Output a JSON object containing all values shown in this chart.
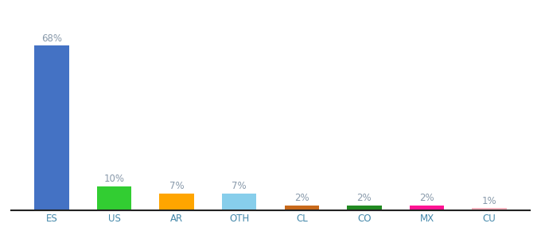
{
  "categories": [
    "ES",
    "US",
    "AR",
    "OTH",
    "CL",
    "CO",
    "MX",
    "CU"
  ],
  "values": [
    68,
    10,
    7,
    7,
    2,
    2,
    2,
    1
  ],
  "labels": [
    "68%",
    "10%",
    "7%",
    "7%",
    "2%",
    "2%",
    "2%",
    "1%"
  ],
  "bar_colors": [
    "#4472c4",
    "#32cd32",
    "#ffa500",
    "#87ceeb",
    "#c8691a",
    "#228b22",
    "#ff1493",
    "#ffb6c1"
  ],
  "ylim": [
    0,
    75
  ],
  "background_color": "#ffffff",
  "label_fontsize": 8.5,
  "tick_fontsize": 8.5,
  "label_color": "#8899aa",
  "tick_color": "#4488aa",
  "spine_color": "#222222"
}
